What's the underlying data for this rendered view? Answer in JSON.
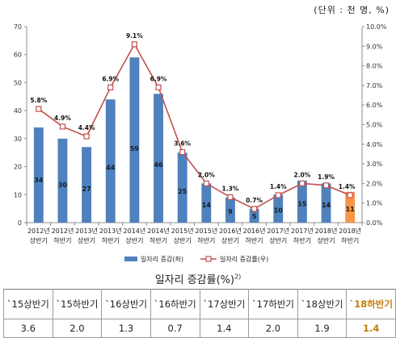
{
  "unit_text": "(단위 : 천 명, %)",
  "caption": "일자리 증감률(%)",
  "caption_note": "2)",
  "chart_data": {
    "type": "bar+line",
    "categories": [
      [
        "2012년",
        "상반기"
      ],
      [
        "2012년",
        "하반기"
      ],
      [
        "2013년",
        "상반기"
      ],
      [
        "2013년",
        "하반기"
      ],
      [
        "2014년",
        "상반기"
      ],
      [
        "2014년",
        "하반기"
      ],
      [
        "2015년",
        "상반기"
      ],
      [
        "2015년",
        "하반기"
      ],
      [
        "2016년",
        "상반기"
      ],
      [
        "2016년",
        "하반기"
      ],
      [
        "2017년",
        "상반기"
      ],
      [
        "2017년",
        "하반기"
      ],
      [
        "2018년",
        "상반기"
      ],
      [
        "2018년",
        "하반기"
      ]
    ],
    "series": [
      {
        "name": "일자리 증감(좌)",
        "kind": "bar",
        "axis": "left",
        "color": "#4f81bd",
        "values": [
          34,
          30,
          27,
          44,
          59,
          46,
          25,
          14,
          9,
          5,
          10,
          15,
          14,
          11
        ],
        "labels": [
          "34",
          "30",
          "27",
          "44",
          "59",
          "46",
          "25",
          "14",
          "9",
          "5",
          "10",
          "15",
          "14",
          "11"
        ],
        "highlight_index": 13,
        "highlight_color": "#f79646"
      },
      {
        "name": "일자리 증감률(우)",
        "kind": "line",
        "axis": "right",
        "color": "#c0504d",
        "values": [
          5.8,
          4.9,
          4.4,
          6.9,
          9.1,
          6.9,
          3.6,
          2.0,
          1.3,
          0.7,
          1.4,
          2.0,
          1.9,
          1.4
        ],
        "labels": [
          "5.8%",
          "4.9%",
          "4.4%",
          "6.9%",
          "9.1%",
          "6.9%",
          "3.6%",
          "2.0%",
          "1.3%",
          "0.7%",
          "1.4%",
          "2.0%",
          "1.9%",
          "1.4%"
        ],
        "highlight_label_color": "#e36c09"
      }
    ],
    "y_left": {
      "min": 0,
      "max": 70,
      "ticks": [
        "0",
        "10",
        "20",
        "30",
        "40",
        "50",
        "60",
        "70"
      ]
    },
    "y_right": {
      "min": 0,
      "max": 10,
      "ticks": [
        "0.0%",
        "1.0%",
        "2.0%",
        "3.0%",
        "4.0%",
        "5.0%",
        "6.0%",
        "7.0%",
        "8.0%",
        "9.0%",
        "10.0%"
      ]
    },
    "legend_position": "bottom",
    "grid": false
  },
  "table": {
    "headers": [
      "`15상반기",
      "`15하반기",
      "`16상반기",
      "`16하반기",
      "`17상반기",
      "`17하반기",
      "`18상반기",
      "`18하반기"
    ],
    "values": [
      "3.6",
      "2.0",
      "1.3",
      "0.7",
      "1.4",
      "2.0",
      "1.9",
      "1.4"
    ],
    "highlight_index": 7,
    "highlight_color": "#c77a0a"
  }
}
